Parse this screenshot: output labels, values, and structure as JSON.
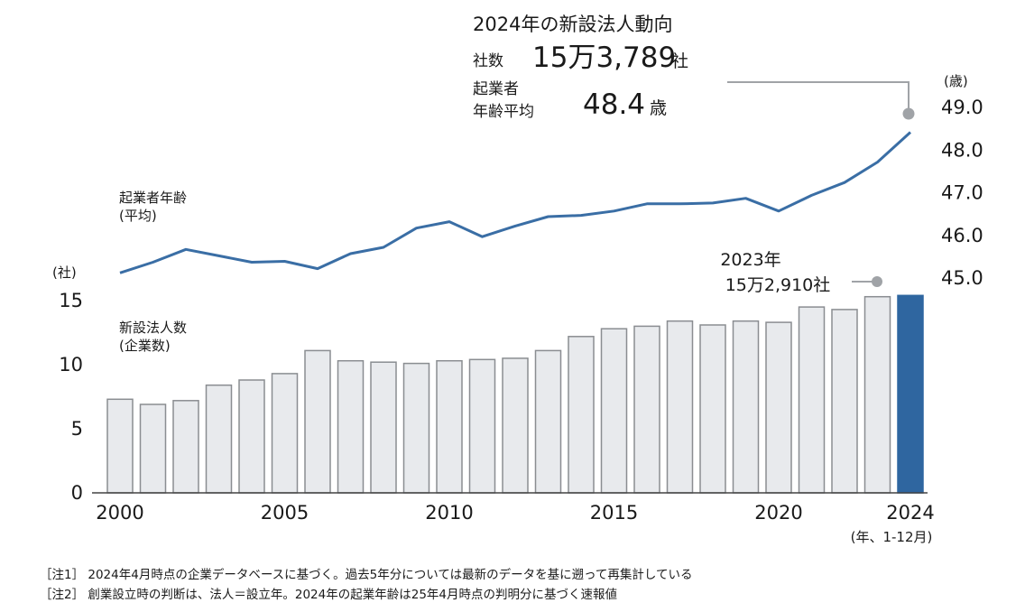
{
  "summary": {
    "title": "2024年の新設法人動向",
    "count_label": "社数",
    "count_value": "15万3,789",
    "count_unit": "社",
    "age_label_line1": "起業者",
    "age_label_line2": "年齢平均",
    "age_value": "48.4",
    "age_unit": "歳"
  },
  "chart_data": {
    "type": "bar+line",
    "x": [
      2000,
      2001,
      2002,
      2003,
      2004,
      2005,
      2006,
      2007,
      2008,
      2009,
      2010,
      2011,
      2012,
      2013,
      2014,
      2015,
      2016,
      2017,
      2018,
      2019,
      2020,
      2021,
      2022,
      2023,
      2024
    ],
    "xticks": [
      "2000",
      "2005",
      "2010",
      "2015",
      "2020",
      "2024"
    ],
    "xlabel_note": "(年、1-12月)",
    "bars": {
      "name_line1": "新設法人数",
      "name_line2": "(企業数)",
      "unit": "(社)",
      "values_man": [
        7.3,
        6.9,
        7.2,
        8.4,
        8.8,
        9.3,
        11.1,
        10.3,
        10.2,
        10.1,
        10.3,
        10.4,
        10.5,
        11.1,
        12.2,
        12.8,
        13.0,
        13.4,
        13.1,
        13.4,
        13.3,
        14.5,
        14.3,
        15.3,
        15.4
      ],
      "ylim": [
        0,
        16
      ],
      "yticks": [
        "0",
        "5",
        "10",
        "15"
      ],
      "colors": {
        "past": "#e8eaed",
        "past_border": "#8a8d91",
        "current": "#2f66a0"
      },
      "callout_year": "2023年",
      "callout_value": "15万2,910社"
    },
    "line": {
      "name_line1": "起業者年齢",
      "name_line2": "(平均)",
      "unit": "(歳)",
      "values": [
        45.1,
        45.35,
        45.65,
        45.5,
        45.35,
        45.37,
        45.2,
        45.55,
        45.7,
        46.15,
        46.3,
        45.95,
        46.2,
        46.42,
        46.45,
        46.55,
        46.72,
        46.72,
        46.74,
        46.85,
        46.55,
        46.92,
        47.22,
        47.7,
        48.4
      ],
      "ylim": [
        45.0,
        49.0
      ],
      "yticks": [
        "45.0",
        "46.0",
        "47.0",
        "48.0",
        "49.0"
      ],
      "color": "#3a6ea5"
    }
  },
  "notes": [
    "［注1］ 2024年4月時点の企業データベースに基づく。過去5年分については最新のデータを基に遡って再集計している",
    "［注2］ 創業設立時の判断は、法人＝設立年。2024年の起業年齢は25年4月時点の判明分に基づく速報値"
  ]
}
